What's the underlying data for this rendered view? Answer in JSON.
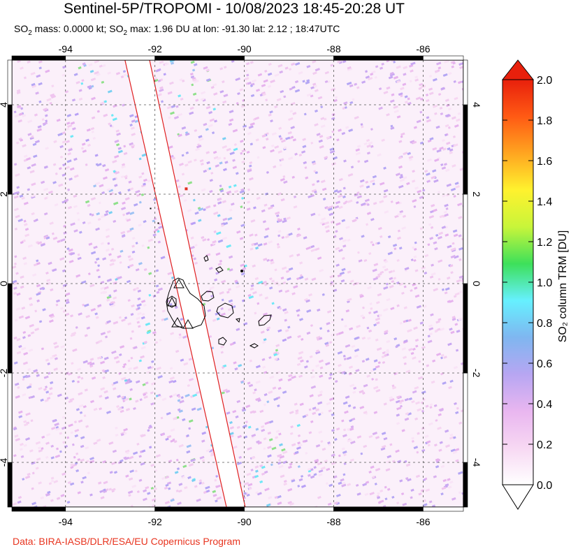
{
  "header": {
    "title": "Sentinel-5P/TROPOMI - 10/08/2023 18:45-20:28 UT",
    "stats": {
      "mass_label": "SO",
      "mass_rest": " mass: 0.0000 kt; SO",
      "max_rest": " max: 1.96 DU at lon: -91.30 lat: 2.12 ; 18:47UTC",
      "subscript": "2"
    }
  },
  "map": {
    "lon_labels": [
      "-94",
      "-92",
      "-90",
      "-88",
      "-86"
    ],
    "lat_labels": [
      "4",
      "2",
      "0",
      "-2",
      "-4"
    ],
    "lon_values": [
      -94,
      -92,
      -90,
      -88,
      -86
    ],
    "lat_values": [
      4,
      2,
      0,
      -2,
      -4
    ],
    "lon_range": [
      -95.2,
      -85.1
    ],
    "lat_range": [
      -5.0,
      5.0
    ],
    "max_marker": {
      "lon": -91.3,
      "lat": 2.12,
      "color": "#e03020"
    },
    "grid": "dashed",
    "swath_gap_color": "#ffffff",
    "swath_edge_color": "#e02020"
  },
  "colorbar": {
    "title": "SO₂ column TRM [DU]",
    "ticks": [
      "2.0",
      "1.8",
      "1.6",
      "1.4",
      "1.2",
      "1.0",
      "0.8",
      "0.6",
      "0.4",
      "0.2",
      "0.0"
    ],
    "range": [
      0.0,
      2.0
    ],
    "colors": [
      "#ffffff",
      "#f7d8f3",
      "#e9b6f0",
      "#b7a6f2",
      "#7fb6f0",
      "#66f0ff",
      "#3de05a",
      "#c8f53a",
      "#fff22e",
      "#ffa520",
      "#ff5a14",
      "#e8200c"
    ]
  },
  "footer": {
    "credit": "Data: BIRA-IASB/DLR/ESA/EU Copernicus Program"
  }
}
